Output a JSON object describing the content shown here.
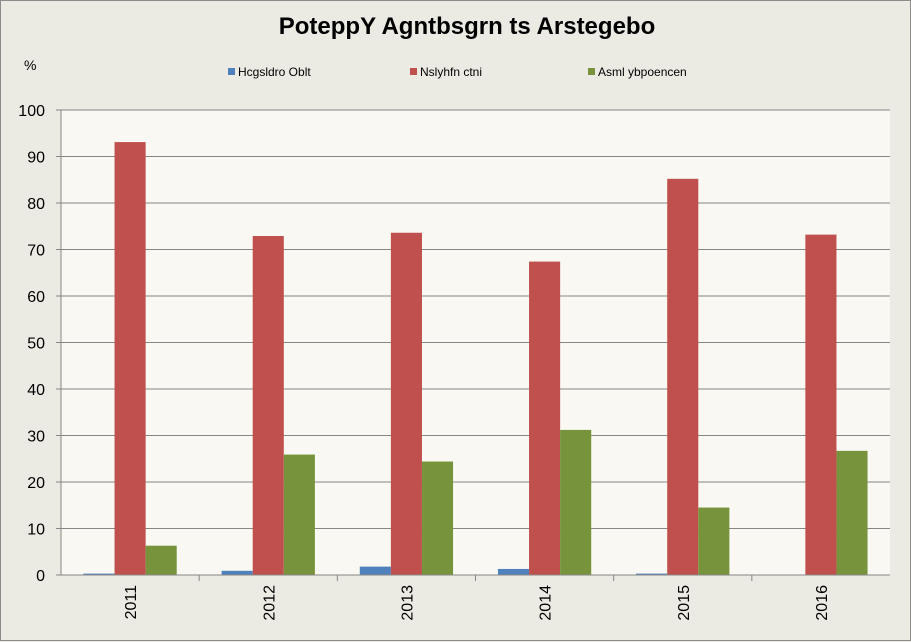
{
  "chart_data": {
    "type": "bar",
    "title": "PoteppY Agntbsgrn ts Arstegebo",
    "ylabel": "%",
    "categories": [
      "2011",
      "2012",
      "2013",
      "2014",
      "2015",
      "2016"
    ],
    "series": [
      {
        "name": "Hcgsldro Oblt",
        "color": "#4f81bd",
        "values": [
          0.3,
          0.9,
          1.8,
          1.3,
          0.3,
          0
        ]
      },
      {
        "name": "Nslyhfn ctni",
        "color": "#c0504d",
        "values": [
          93.1,
          72.9,
          73.6,
          67.4,
          85.2,
          73.2
        ]
      },
      {
        "name": "Asml ybpoencen",
        "color": "#77933c",
        "values": [
          6.3,
          25.9,
          24.4,
          31.2,
          14.5,
          26.7
        ]
      }
    ],
    "ylim": [
      0,
      100
    ],
    "yticks": [
      0,
      10,
      20,
      30,
      40,
      50,
      60,
      70,
      80,
      90,
      100
    ],
    "grid": true,
    "legend_position": "top"
  }
}
